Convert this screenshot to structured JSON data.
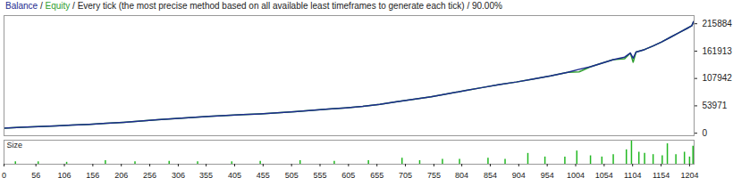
{
  "chart_data": [
    {
      "type": "line",
      "title": "Every tick (the most precise method based on all available least timeframes to generate each tick) / 90.00%",
      "x": [
        0,
        30,
        60,
        90,
        120,
        150,
        180,
        210,
        240,
        270,
        300,
        330,
        360,
        390,
        420,
        450,
        480,
        510,
        540,
        570,
        600,
        630,
        660,
        690,
        720,
        750,
        780,
        810,
        840,
        870,
        900,
        930,
        960,
        990,
        1010,
        1030,
        1050,
        1070,
        1090,
        1100,
        1105,
        1110,
        1125,
        1140,
        1155,
        1170,
        1185,
        1200,
        1208,
        1211
      ],
      "series": [
        {
          "name": "Balance",
          "color": "#1c2a8e",
          "values": [
            10000,
            11500,
            13000,
            14500,
            16000,
            17500,
            19500,
            21500,
            24000,
            26500,
            29000,
            31000,
            33000,
            35000,
            36500,
            38000,
            40000,
            42500,
            45000,
            47500,
            50000,
            53000,
            57000,
            62000,
            67000,
            72000,
            78000,
            84000,
            90000,
            96000,
            101000,
            107000,
            113000,
            120000,
            126000,
            131000,
            138000,
            145000,
            150000,
            158000,
            148000,
            160000,
            165000,
            172000,
            180000,
            189000,
            198000,
            207000,
            212000,
            220000
          ]
        },
        {
          "name": "Equity",
          "color": "#2e9e2e",
          "values": [
            10000,
            11500,
            13000,
            14500,
            16000,
            17500,
            19500,
            21500,
            24000,
            26500,
            29000,
            31000,
            33000,
            35000,
            36500,
            38000,
            40000,
            42500,
            45000,
            47500,
            50000,
            53000,
            57000,
            62000,
            67000,
            72000,
            78000,
            84000,
            90000,
            96000,
            101000,
            107000,
            113000,
            120000,
            121000,
            131000,
            138000,
            145000,
            147000,
            158000,
            140000,
            160000,
            165000,
            172000,
            180000,
            189000,
            198000,
            207000,
            212000,
            220000
          ]
        }
      ],
      "xlim": [
        0,
        1212
      ],
      "ylim": [
        -5000,
        232000
      ],
      "yticks": [
        0,
        53971,
        107942,
        161913,
        215884
      ],
      "grid": false,
      "tick_labels": "y"
    },
    {
      "type": "bar",
      "title": "Size",
      "x": [
        20,
        60,
        110,
        178,
        230,
        290,
        340,
        400,
        450,
        520,
        580,
        640,
        699,
        730,
        770,
        800,
        850,
        880,
        920,
        950,
        985,
        1006,
        1030,
        1050,
        1070,
        1093,
        1102,
        1115,
        1125,
        1140,
        1156,
        1165,
        1180,
        1195,
        1204,
        1210
      ],
      "values": [
        0.1,
        0.1,
        0.08,
        0.15,
        0.1,
        0.12,
        0.1,
        0.1,
        0.12,
        0.15,
        0.12,
        0.15,
        0.25,
        0.15,
        0.2,
        0.2,
        0.25,
        0.2,
        0.45,
        0.3,
        0.3,
        0.55,
        0.35,
        0.3,
        0.4,
        0.6,
        1.0,
        0.5,
        0.45,
        0.4,
        0.35,
        0.85,
        0.4,
        0.5,
        0.3,
        0.75
      ],
      "color": "#22b822",
      "xlim": [
        0,
        1212
      ],
      "xticks": [
        0,
        56,
        106,
        156,
        206,
        256,
        306,
        355,
        405,
        455,
        505,
        555,
        605,
        655,
        705,
        755,
        804,
        854,
        904,
        954,
        1004,
        1054,
        1104,
        1154,
        1204
      ],
      "ylim": [
        0,
        1
      ],
      "grid": false,
      "tick_labels": "x"
    }
  ]
}
